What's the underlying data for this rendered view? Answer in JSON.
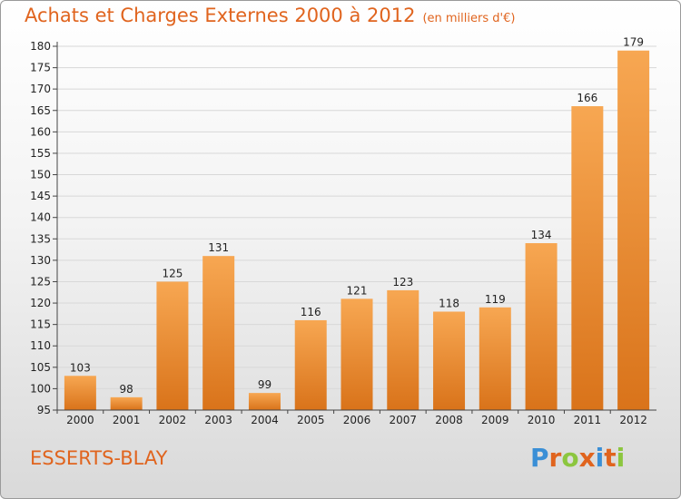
{
  "header": {
    "title": "Achats et Charges Externes 2000 à 2012",
    "unit": "(en milliers d'€)"
  },
  "footer": {
    "commune": "ESSERTS-BLAY",
    "logo_text": "Proxiti",
    "logo_colors": [
      "#3a8fd6",
      "#e0641e",
      "#8cc63f",
      "#e0641e",
      "#3a8fd6",
      "#e0641e",
      "#8cc63f"
    ]
  },
  "colors": {
    "bar_light": "#f7a752",
    "bar_dark": "#d9731a",
    "accent": "#e0641e",
    "grid": "#d8d8d8",
    "axis": "#444444"
  },
  "chart_data": {
    "type": "bar",
    "title": "Achats et Charges Externes 2000 à 2012",
    "subtitle": "(en milliers d'€)",
    "xlabel": "",
    "ylabel": "",
    "categories": [
      "2000",
      "2001",
      "2002",
      "2003",
      "2004",
      "2005",
      "2006",
      "2007",
      "2008",
      "2009",
      "2010",
      "2011",
      "2012"
    ],
    "values": [
      103,
      98,
      125,
      131,
      99,
      116,
      121,
      123,
      118,
      119,
      134,
      166,
      179
    ],
    "ylim": [
      95,
      180
    ],
    "yticks": [
      95,
      100,
      105,
      110,
      115,
      120,
      125,
      130,
      135,
      140,
      145,
      150,
      155,
      160,
      165,
      170,
      175,
      180
    ],
    "grid": true,
    "data_labels": true
  }
}
